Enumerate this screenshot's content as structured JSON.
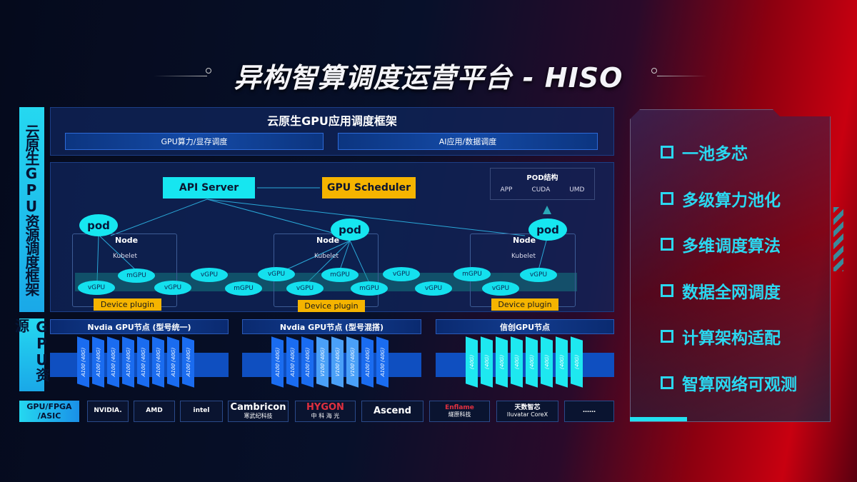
{
  "title": "异构智算调度运营平台 - HISO",
  "left_labels": {
    "framework": "云原生GPU资源调度框架",
    "resources": "GPU资源",
    "hardware": "GPU/FPGA /ASIC"
  },
  "app_framework": {
    "title": "云原生GPU应用调度框架",
    "items": [
      "GPU算力/显存调度",
      "AI应用/数据调度"
    ]
  },
  "control": {
    "api_server": "API Server",
    "scheduler": "GPU Scheduler"
  },
  "pod_structure": {
    "title": "POD结构",
    "items": [
      "APP",
      "CUDA",
      "UMD"
    ]
  },
  "nodes": [
    {
      "pod": "pod",
      "label": "Node",
      "kubelet": "Kubelet",
      "plugin": "Device plugin"
    },
    {
      "pod": "pod",
      "label": "Node",
      "kubelet": "Kubelet",
      "plugin": "Device plugin"
    },
    {
      "pod": "pod",
      "label": "Node",
      "kubelet": "Kubelet",
      "plugin": "Device plugin"
    }
  ],
  "gpu_units": [
    "vGPU",
    "mGPU",
    "vGPU",
    "vGPU",
    "mGPU",
    "vGPU",
    "vGPU",
    "mGPU",
    "mGPU",
    "vGPU",
    "vGPU",
    "mGPU",
    "vGPU",
    "vGPU"
  ],
  "gpu_groups": [
    {
      "title": "Nvdia GPU节点 (型号统一)",
      "chips": [
        "A100 (40G)",
        "A100 (40G)",
        "A100 (40G)",
        "A100 (40G)",
        "A100 (40G)",
        "A100 (40G)",
        "A100 (40G)",
        "A100 (40G)"
      ]
    },
    {
      "title": "Nvdia GPU节点 (型号混搭)",
      "chips": [
        "A100 (40G)",
        "A100 (40G)",
        "A100 (40G)",
        "V100 (40G)",
        "V100 (40G)",
        "V100 (40G)",
        "A100 (40G)",
        "A100 (40G)"
      ]
    },
    {
      "title": "信创GPU节点",
      "chips": [
        "(40G)",
        "(40G)",
        "(40G)",
        "(40G)",
        "(40G)",
        "(40G)",
        "(40G)",
        "(40G)"
      ]
    }
  ],
  "vendors": [
    {
      "name": "NVIDIA.",
      "sub": ""
    },
    {
      "name": "AMD",
      "sub": ""
    },
    {
      "name": "intel",
      "sub": ""
    },
    {
      "name": "Cambricon",
      "sub": "寒武纪科技"
    },
    {
      "name": "HYGON",
      "sub": "中 科 海 光"
    },
    {
      "name": "Ascend",
      "sub": ""
    },
    {
      "name": "Enflame",
      "sub": "燧原科技"
    },
    {
      "name": "天数智芯",
      "sub": "Iluvatar CoreX"
    },
    {
      "name": "……",
      "sub": ""
    }
  ],
  "features": [
    "一池多芯",
    "多级算力池化",
    "多维调度算法",
    "数据全网调度",
    "计算架构适配",
    "智算网络可观测"
  ],
  "colors": {
    "cyan": "#16e6f0",
    "yellow": "#f5b400",
    "blue": "#0f4fc0",
    "feature_text": "#2ad8f0"
  }
}
